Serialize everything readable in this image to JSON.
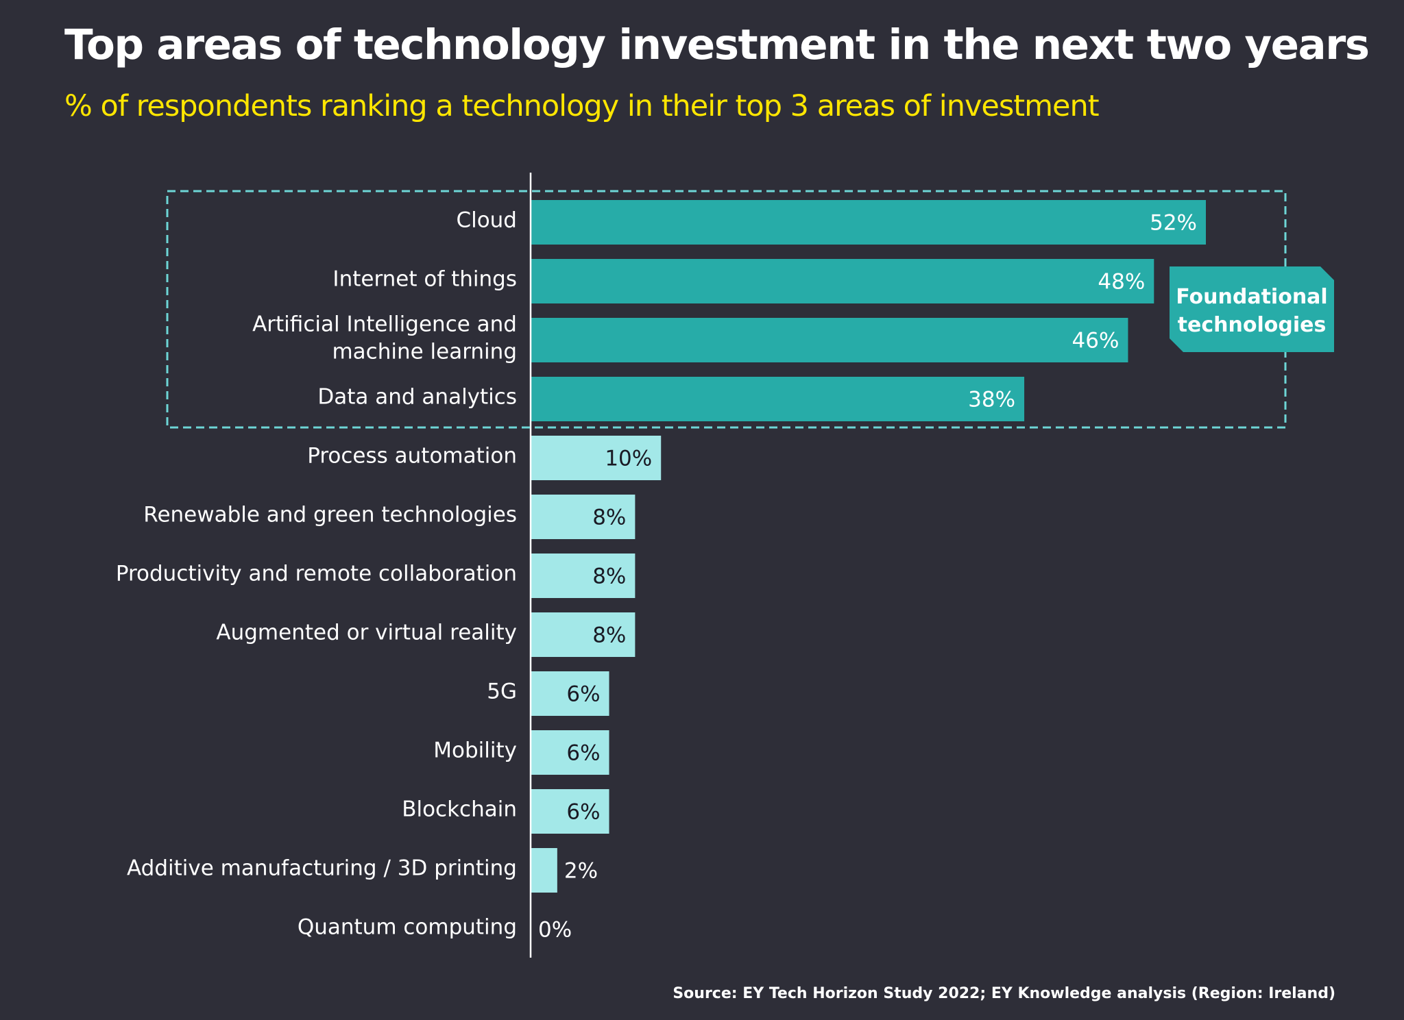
{
  "header": {
    "title": "Top areas of technology investment in the next two years",
    "subtitle": "% of respondents ranking a technology in their top 3 areas of investment"
  },
  "footer": {
    "source": "Source: EY Tech Horizon Study 2022; EY Knowledge analysis (Region: Ireland)"
  },
  "colors": {
    "background": "#2e2e38",
    "foundational": "#27aca8",
    "other": "#a3e8e8",
    "dashed_box": "#6dd6d6",
    "title": "#ffffff",
    "subtitle": "#ffe600"
  },
  "chart_data": {
    "type": "bar",
    "orientation": "horizontal",
    "title": "Top areas of technology investment in the next two years",
    "subtitle": "% of respondents ranking a technology in their top 3 areas of investment",
    "xlabel": "",
    "ylabel": "",
    "xlim": [
      0,
      52
    ],
    "grid": false,
    "unit": "%",
    "categories": [
      [
        "Cloud"
      ],
      [
        "Internet of things"
      ],
      [
        "Artificial Intelligence and",
        "machine learning"
      ],
      [
        "Data and analytics"
      ],
      [
        "Process automation"
      ],
      [
        "Renewable and green technologies"
      ],
      [
        "Productivity and remote collaboration"
      ],
      [
        "Augmented or virtual reality"
      ],
      [
        "5G"
      ],
      [
        "Mobility"
      ],
      [
        "Blockchain"
      ],
      [
        "Additive manufacturing / 3D printing"
      ],
      [
        "Quantum computing"
      ]
    ],
    "values": [
      52,
      48,
      46,
      38,
      10,
      8,
      8,
      8,
      6,
      6,
      6,
      2,
      0
    ],
    "data_labels": [
      "52%",
      "48%",
      "46%",
      "38%",
      "10%",
      "8%",
      "8%",
      "8%",
      "6%",
      "6%",
      "6%",
      "2%",
      "0%"
    ],
    "groups": [
      "foundational",
      "foundational",
      "foundational",
      "foundational",
      "other",
      "other",
      "other",
      "other",
      "other",
      "other",
      "other",
      "other",
      "other"
    ],
    "annotations": [
      {
        "text": [
          "Foundational",
          "technologies"
        ],
        "applies_to": "foundational",
        "style": "dashed box + callout tag"
      }
    ]
  }
}
